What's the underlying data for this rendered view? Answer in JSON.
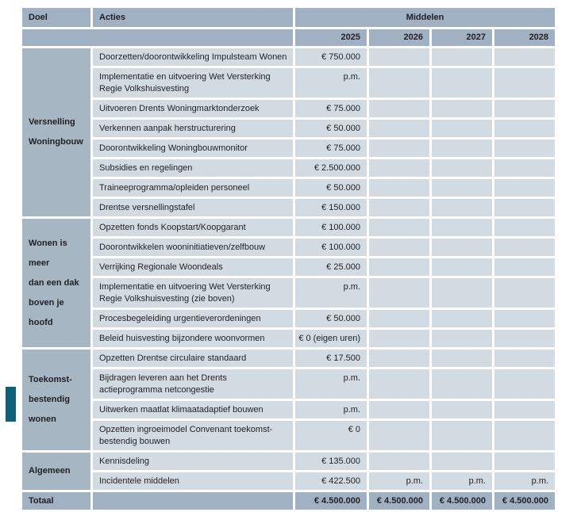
{
  "table": {
    "col_headers": {
      "doel": "Doel",
      "acties": "Acties",
      "middelen": "Middelen"
    },
    "years": [
      "2025",
      "2026",
      "2027",
      "2028"
    ],
    "sections": [
      {
        "label": "Versnelling\nWoningbouw",
        "rows": [
          {
            "actie": "Doorzetten/doorontwikkeling Impulsteam Wonen",
            "values": [
              "€ 750.000",
              "",
              "",
              ""
            ]
          },
          {
            "actie": "Implementatie en uitvoering Wet Versterking\nRegie Volkshuisvesting",
            "values": [
              "p.m.",
              "",
              "",
              ""
            ]
          },
          {
            "actie": "Uitvoeren Drents Woningmarktonderzoek",
            "values": [
              "€ 75.000",
              "",
              "",
              ""
            ]
          },
          {
            "actie": "Verkennen aanpak herstructurering",
            "values": [
              "€ 50.000",
              "",
              "",
              ""
            ]
          },
          {
            "actie": "Doorontwikkeling Woningbouwmonitor",
            "values": [
              "€ 75.000",
              "",
              "",
              ""
            ]
          },
          {
            "actie": "Subsidies en regelingen",
            "values": [
              "€ 2.500.000",
              "",
              "",
              ""
            ]
          },
          {
            "actie": "Traineeprogramma/opleiden personeel",
            "values": [
              "€ 50.000",
              "",
              "",
              ""
            ]
          },
          {
            "actie": "Drentse versnellingstafel",
            "values": [
              "€ 150.000",
              "",
              "",
              ""
            ]
          }
        ]
      },
      {
        "label": "Wonen is\nmeer\ndan een dak\nboven je\nhoofd",
        "rows": [
          {
            "actie": "Opzetten fonds Koopstart/Koopgarant",
            "values": [
              "€ 100.000",
              "",
              "",
              ""
            ]
          },
          {
            "actie": "Doorontwikkelen wooninitiatieven/zelfbouw",
            "values": [
              "€ 100.000",
              "",
              "",
              ""
            ]
          },
          {
            "actie": "Verrijking Regionale Woondeals",
            "values": [
              "€ 25.000",
              "",
              "",
              ""
            ]
          },
          {
            "actie": "Implementatie en uitvoering Wet Versterking\nRegie Volkshuisvesting (zie boven)",
            "values": [
              "p.m.",
              "",
              "",
              ""
            ]
          },
          {
            "actie": "Procesbegeleiding urgentieverordeningen",
            "values": [
              "€ 50.000",
              "",
              "",
              ""
            ]
          },
          {
            "actie": "Beleid huisvesting bijzondere woonvormen",
            "values": [
              "€ 0 (eigen uren)",
              "",
              "",
              ""
            ]
          }
        ]
      },
      {
        "label": "Toekomst-\nbestendig\nwonen",
        "rows": [
          {
            "actie": "Opzetten Drentse circulaire standaard",
            "values": [
              "€ 17.500",
              "",
              "",
              ""
            ]
          },
          {
            "actie": "Bijdragen leveren aan het Drents\nactieprogramma netcongestie",
            "values": [
              "p.m.",
              "",
              "",
              ""
            ]
          },
          {
            "actie": "Uitwerken maatlat klimaatadaptief bouwen",
            "values": [
              "p.m.",
              "",
              "",
              ""
            ]
          },
          {
            "actie": "Opzetten ingroeimodel Convenant toekomst-\nbestendig bouwen",
            "values": [
              "€ 0",
              "",
              "",
              ""
            ]
          }
        ]
      },
      {
        "label": "Algemeen",
        "rows": [
          {
            "actie": "Kennisdeling",
            "values": [
              "€ 135.000",
              "",
              "",
              ""
            ]
          },
          {
            "actie": "Incidentele middelen",
            "values": [
              "€ 422.500",
              "p.m.",
              "p.m.",
              "p.m."
            ]
          }
        ]
      }
    ],
    "total": {
      "label": "Totaal",
      "values": [
        "€ 4.500.000",
        "€ 4.500.000",
        "€ 4.500.000",
        "€ 4.500.000"
      ]
    }
  },
  "colors": {
    "header_bg": "#a0b1c3",
    "section_bg": "#a7b6c3",
    "cell_bg": "#d3dbe2",
    "accent_teal": "#0c617a",
    "text": "#1f2023"
  }
}
